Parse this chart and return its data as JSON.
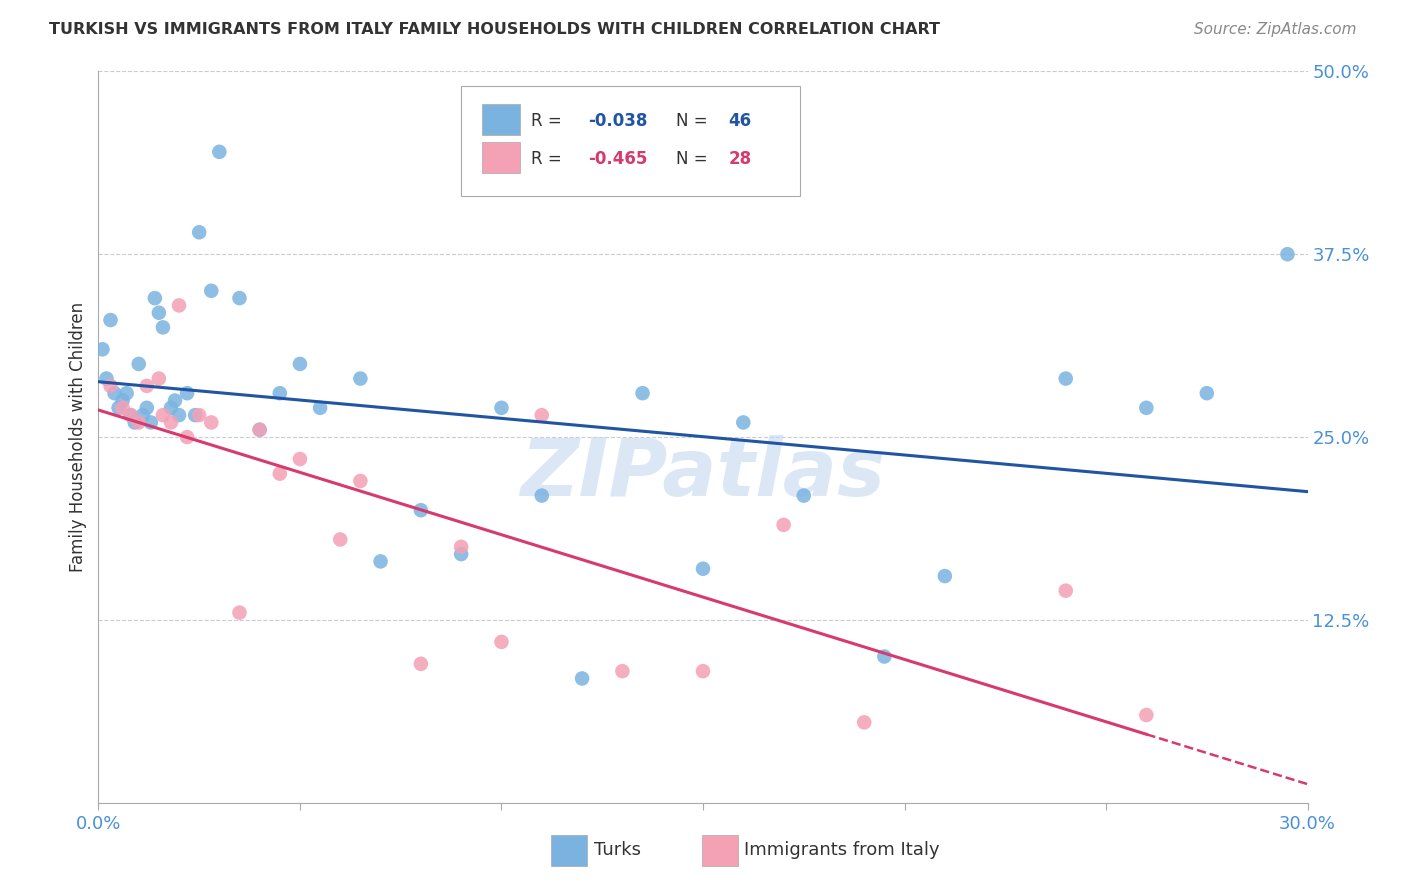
{
  "title": "TURKISH VS IMMIGRANTS FROM ITALY FAMILY HOUSEHOLDS WITH CHILDREN CORRELATION CHART",
  "source": "Source: ZipAtlas.com",
  "ylabel": "Family Households with Children",
  "xlim": [
    0.0,
    0.3
  ],
  "ylim": [
    0.0,
    0.5
  ],
  "ytick_vals": [
    0.0,
    0.125,
    0.25,
    0.375,
    0.5
  ],
  "ytick_labels": [
    "",
    "12.5%",
    "25.0%",
    "37.5%",
    "50.0%"
  ],
  "xtick_vals": [
    0.0,
    0.05,
    0.1,
    0.15,
    0.2,
    0.25,
    0.3
  ],
  "xtick_labels": [
    "0.0%",
    "",
    "",
    "",
    "",
    "",
    "30.0%"
  ],
  "R_turks": -0.038,
  "N_turks": 46,
  "R_italy": -0.465,
  "N_italy": 28,
  "turks_color": "#7ab3e0",
  "italy_color": "#f4a0b5",
  "turks_line_color": "#2155a3",
  "italy_line_color": "#d63a6e",
  "background_color": "#ffffff",
  "grid_color": "#cccccc",
  "watermark_color": "#c5d8f0",
  "title_color": "#333333",
  "axis_label_color": "#333333",
  "tick_label_color": "#4a90d9",
  "turks_x": [
    0.001,
    0.002,
    0.003,
    0.004,
    0.005,
    0.006,
    0.007,
    0.008,
    0.009,
    0.01,
    0.011,
    0.012,
    0.013,
    0.014,
    0.015,
    0.016,
    0.018,
    0.019,
    0.02,
    0.022,
    0.024,
    0.025,
    0.028,
    0.03,
    0.035,
    0.04,
    0.045,
    0.05,
    0.055,
    0.065,
    0.07,
    0.08,
    0.09,
    0.1,
    0.11,
    0.12,
    0.135,
    0.15,
    0.16,
    0.175,
    0.195,
    0.21,
    0.24,
    0.26,
    0.275,
    0.295
  ],
  "turks_y": [
    0.31,
    0.29,
    0.33,
    0.28,
    0.27,
    0.275,
    0.28,
    0.265,
    0.26,
    0.3,
    0.265,
    0.27,
    0.26,
    0.345,
    0.335,
    0.325,
    0.27,
    0.275,
    0.265,
    0.28,
    0.265,
    0.39,
    0.35,
    0.445,
    0.345,
    0.255,
    0.28,
    0.3,
    0.27,
    0.29,
    0.165,
    0.2,
    0.17,
    0.27,
    0.21,
    0.085,
    0.28,
    0.16,
    0.26,
    0.21,
    0.1,
    0.155,
    0.29,
    0.27,
    0.28,
    0.375
  ],
  "italy_x": [
    0.003,
    0.006,
    0.008,
    0.01,
    0.012,
    0.015,
    0.016,
    0.018,
    0.02,
    0.022,
    0.025,
    0.028,
    0.035,
    0.04,
    0.045,
    0.05,
    0.06,
    0.065,
    0.08,
    0.09,
    0.1,
    0.11,
    0.13,
    0.15,
    0.17,
    0.19,
    0.24,
    0.26
  ],
  "italy_y": [
    0.285,
    0.27,
    0.265,
    0.26,
    0.285,
    0.29,
    0.265,
    0.26,
    0.34,
    0.25,
    0.265,
    0.26,
    0.13,
    0.255,
    0.225,
    0.235,
    0.18,
    0.22,
    0.095,
    0.175,
    0.11,
    0.265,
    0.09,
    0.09,
    0.19,
    0.055,
    0.145,
    0.06
  ]
}
